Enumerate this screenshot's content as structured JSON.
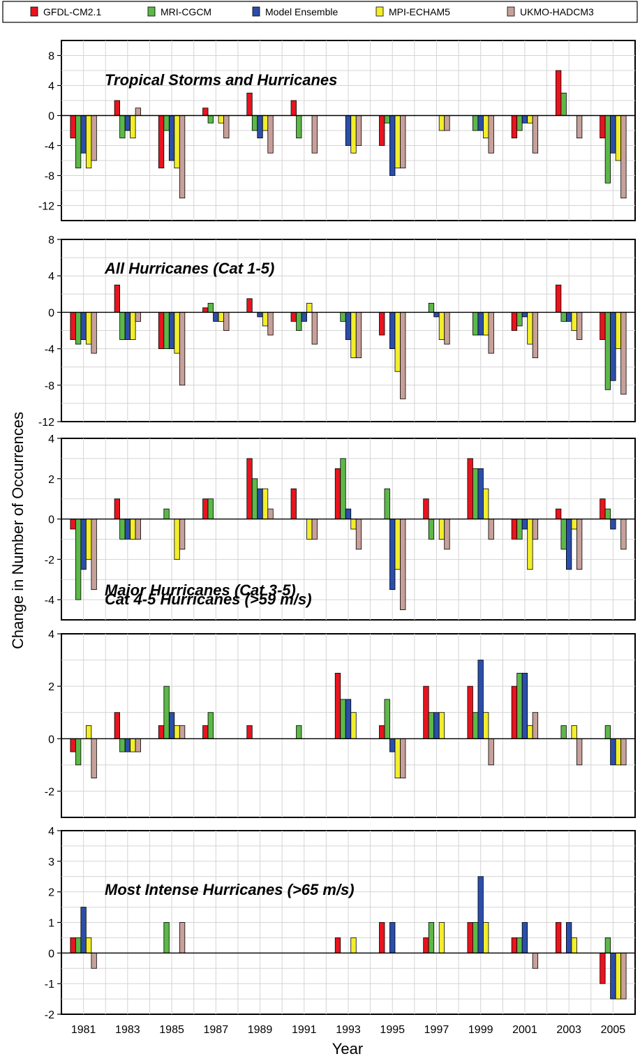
{
  "legend": [
    {
      "name": "GFDL-CM2.1",
      "color": "#e8141e"
    },
    {
      "name": "MRI-CGCM",
      "color": "#5cb848"
    },
    {
      "name": "Model Ensemble",
      "color": "#2b4ea8"
    },
    {
      "name": "MPI-ECHAM5",
      "color": "#f2ee2a"
    },
    {
      "name": "UKMO-HADCM3",
      "color": "#c8a09a"
    }
  ],
  "xlabel": "Year",
  "ylabel": "Change in Number of Occurrences",
  "chart_data": [
    {
      "type": "bar",
      "title": "Tropical Storms and Hurricanes",
      "categories": [
        "1981",
        "1983",
        "1985",
        "1987",
        "1989",
        "1991",
        "1993",
        "1995",
        "1997",
        "1999",
        "2001",
        "2003",
        "2005"
      ],
      "ylim": [
        -14,
        10
      ],
      "yticks": [
        8,
        4,
        0,
        -4,
        -8,
        -12
      ],
      "grid": true,
      "series": [
        {
          "name": "GFDL-CM2.1",
          "values": [
            -3,
            2,
            -7,
            1,
            3,
            2,
            0,
            -4,
            0,
            0,
            -3,
            6,
            -3
          ]
        },
        {
          "name": "MRI-CGCM",
          "values": [
            -7,
            -3,
            -2,
            -1,
            -2,
            -3,
            0,
            -1,
            0,
            -2,
            -2,
            3,
            -9
          ]
        },
        {
          "name": "Model Ensemble",
          "values": [
            -5,
            -2,
            -6,
            0,
            -3,
            0,
            -4,
            -8,
            0,
            -2,
            -1,
            0,
            -5
          ]
        },
        {
          "name": "MPI-ECHAM5",
          "values": [
            -7,
            -3,
            -7,
            -1,
            -2,
            0,
            -5,
            -7,
            -2,
            -3,
            -1,
            0,
            -6
          ]
        },
        {
          "name": "UKMO-HADCM3",
          "values": [
            -6,
            1,
            -11,
            -3,
            -5,
            -5,
            -4,
            -7,
            -2,
            -5,
            -5,
            -3,
            -11
          ]
        }
      ]
    },
    {
      "type": "bar",
      "title": "All Hurricanes (Cat 1-5)",
      "categories": [
        "1981",
        "1983",
        "1985",
        "1987",
        "1989",
        "1991",
        "1993",
        "1995",
        "1997",
        "1999",
        "2001",
        "2003",
        "2005"
      ],
      "ylim": [
        -12,
        8
      ],
      "yticks": [
        8,
        4,
        0,
        -4,
        -8,
        -12
      ],
      "grid": true,
      "series": [
        {
          "name": "GFDL-CM2.1",
          "values": [
            -3,
            3,
            -4,
            0.5,
            1.5,
            -1,
            0,
            -2.5,
            0,
            0,
            -2,
            3,
            -3
          ]
        },
        {
          "name": "MRI-CGCM",
          "values": [
            -3.5,
            -3,
            -4,
            1,
            0,
            -2,
            -1,
            0,
            1,
            -2.5,
            -1.5,
            -1,
            -8.5
          ]
        },
        {
          "name": "Model Ensemble",
          "values": [
            -3,
            -3,
            -4,
            -1,
            -0.5,
            -1,
            -3,
            -4,
            -0.5,
            -2.5,
            -0.5,
            -1,
            -7.5
          ]
        },
        {
          "name": "MPI-ECHAM5",
          "values": [
            -3.5,
            -3,
            -4.5,
            -1,
            -1.5,
            1,
            -5,
            -6.5,
            -3,
            -2.5,
            -3.5,
            -2,
            -4
          ]
        },
        {
          "name": "UKMO-HADCM3",
          "values": [
            -4.5,
            -1,
            -8,
            -2,
            -2.5,
            -3.5,
            -5,
            -9.5,
            -3.5,
            -4.5,
            -5,
            -3,
            -9
          ]
        }
      ]
    },
    {
      "type": "bar",
      "title": "Major Hurricanes (Cat 3-5)",
      "categories": [
        "1981",
        "1983",
        "1985",
        "1987",
        "1989",
        "1991",
        "1993",
        "1995",
        "1997",
        "1999",
        "2001",
        "2003",
        "2005"
      ],
      "ylim": [
        -5,
        4
      ],
      "yticks": [
        4,
        2,
        0,
        -2,
        -4
      ],
      "grid": true,
      "series": [
        {
          "name": "GFDL-CM2.1",
          "values": [
            -0.5,
            1,
            0,
            1,
            3,
            1.5,
            2.5,
            0,
            1,
            3,
            -1,
            0.5,
            1
          ]
        },
        {
          "name": "MRI-CGCM",
          "values": [
            -4,
            -1,
            0.5,
            1,
            2,
            0,
            3,
            1.5,
            -1,
            2.5,
            -1,
            -1.5,
            0.5
          ]
        },
        {
          "name": "Model Ensemble",
          "values": [
            -2.5,
            -1,
            0,
            0,
            1.5,
            0,
            0.5,
            -3.5,
            0,
            2.5,
            -0.5,
            -2.5,
            -0.5
          ]
        },
        {
          "name": "MPI-ECHAM5",
          "values": [
            -2,
            -1,
            -2,
            0,
            1.5,
            -1,
            -0.5,
            -2.5,
            -1,
            1.5,
            -2.5,
            -0.5,
            0
          ]
        },
        {
          "name": "UKMO-HADCM3",
          "values": [
            -3.5,
            -1,
            -1.5,
            0,
            0.5,
            -1,
            -1.5,
            -4.5,
            -1.5,
            -1,
            -1,
            -2.5,
            -1.5
          ]
        }
      ]
    },
    {
      "type": "bar",
      "title": "Cat 4-5 Hurricanes  (>59 m/s)",
      "categories": [
        "1981",
        "1983",
        "1985",
        "1987",
        "1989",
        "1991",
        "1993",
        "1995",
        "1997",
        "1999",
        "2001",
        "2003",
        "2005"
      ],
      "ylim": [
        -3,
        4
      ],
      "yticks": [
        4,
        2,
        0,
        -2
      ],
      "grid": true,
      "series": [
        {
          "name": "GFDL-CM2.1",
          "values": [
            -0.5,
            1,
            0.5,
            0.5,
            0.5,
            0,
            2.5,
            0.5,
            2,
            2,
            2,
            0,
            0
          ]
        },
        {
          "name": "MRI-CGCM",
          "values": [
            -1,
            -0.5,
            2,
            1,
            0,
            0.5,
            1.5,
            1.5,
            1,
            1,
            2.5,
            0.5,
            0.5
          ]
        },
        {
          "name": "Model Ensemble",
          "values": [
            0,
            -0.5,
            1,
            0,
            0,
            0,
            1.5,
            -0.5,
            1,
            3,
            2.5,
            0,
            -1
          ]
        },
        {
          "name": "MPI-ECHAM5",
          "values": [
            0.5,
            -0.5,
            0.5,
            0,
            0,
            0,
            1,
            -1.5,
            1,
            1,
            0.5,
            0.5,
            -1
          ]
        },
        {
          "name": "UKMO-HADCM3",
          "values": [
            -1.5,
            -0.5,
            0.5,
            0,
            0,
            0,
            0,
            -1.5,
            0,
            -1,
            1,
            -1,
            -1
          ]
        }
      ]
    },
    {
      "type": "bar",
      "title": "Most Intense Hurricanes (>65 m/s)",
      "categories": [
        "1981",
        "1983",
        "1985",
        "1987",
        "1989",
        "1991",
        "1993",
        "1995",
        "1997",
        "1999",
        "2001",
        "2003",
        "2005"
      ],
      "ylim": [
        -2,
        4
      ],
      "yticks": [
        4,
        3,
        2,
        1,
        0,
        -1,
        -2
      ],
      "grid": true,
      "series": [
        {
          "name": "GFDL-CM2.1",
          "values": [
            0.5,
            0,
            0,
            0,
            0,
            0,
            0.5,
            1,
            0.5,
            1,
            0.5,
            1,
            -1
          ]
        },
        {
          "name": "MRI-CGCM",
          "values": [
            0.5,
            0,
            1,
            0,
            0,
            0,
            0,
            0,
            1,
            1,
            0.5,
            0,
            0.5
          ]
        },
        {
          "name": "Model Ensemble",
          "values": [
            1.5,
            0,
            0,
            0,
            0,
            0,
            0,
            1,
            0,
            2.5,
            1,
            1,
            -1.5
          ]
        },
        {
          "name": "MPI-ECHAM5",
          "values": [
            0.5,
            0,
            0,
            0,
            0,
            0,
            0.5,
            0,
            1,
            1,
            0,
            0.5,
            -1.5
          ]
        },
        {
          "name": "UKMO-HADCM3",
          "values": [
            -0.5,
            0,
            1,
            0,
            0,
            0,
            0,
            0,
            0,
            0,
            -0.5,
            0,
            -1.5
          ]
        }
      ]
    }
  ]
}
